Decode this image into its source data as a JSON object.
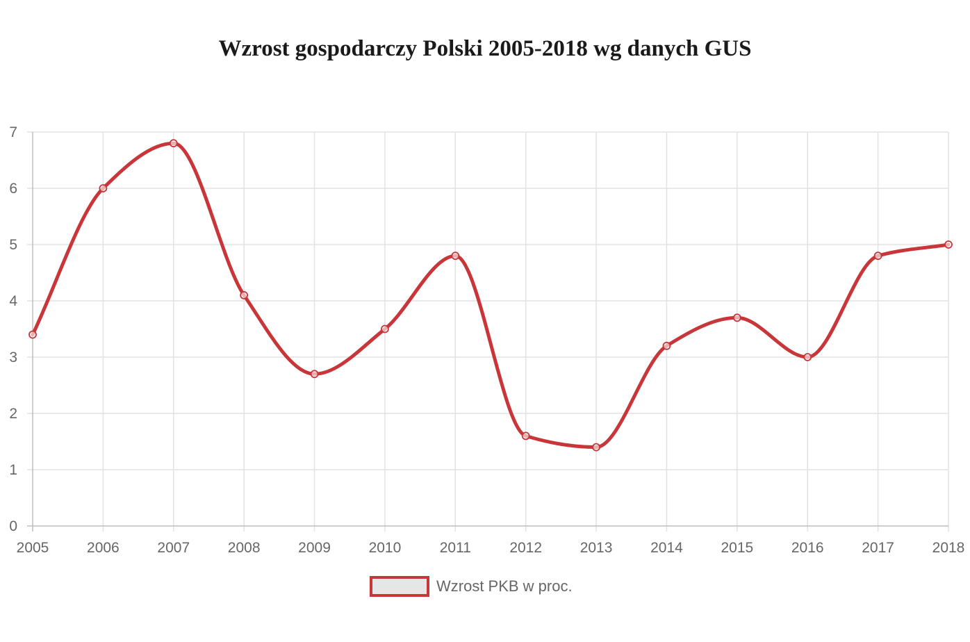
{
  "chart_data": {
    "type": "line",
    "title": "Wzrost gospodarczy Polski 2005-2018 wg danych GUS",
    "categories": [
      "2005",
      "2006",
      "2007",
      "2008",
      "2009",
      "2010",
      "2011",
      "2012",
      "2013",
      "2014",
      "2015",
      "2016",
      "2017",
      "2018"
    ],
    "series": [
      {
        "name": "Wzrost PKB w proc.",
        "values": [
          3.4,
          6.0,
          6.8,
          4.1,
          2.7,
          3.5,
          4.8,
          1.6,
          1.4,
          3.2,
          3.7,
          3.0,
          4.8,
          5.0
        ],
        "color": "#c8363a"
      }
    ],
    "y_ticks": [
      "0",
      "1",
      "2",
      "3",
      "4",
      "5",
      "6",
      "7"
    ],
    "ylim": [
      0,
      7
    ],
    "grid": true,
    "legend_position": "bottom",
    "legend_fill": "#e6e6e6"
  }
}
